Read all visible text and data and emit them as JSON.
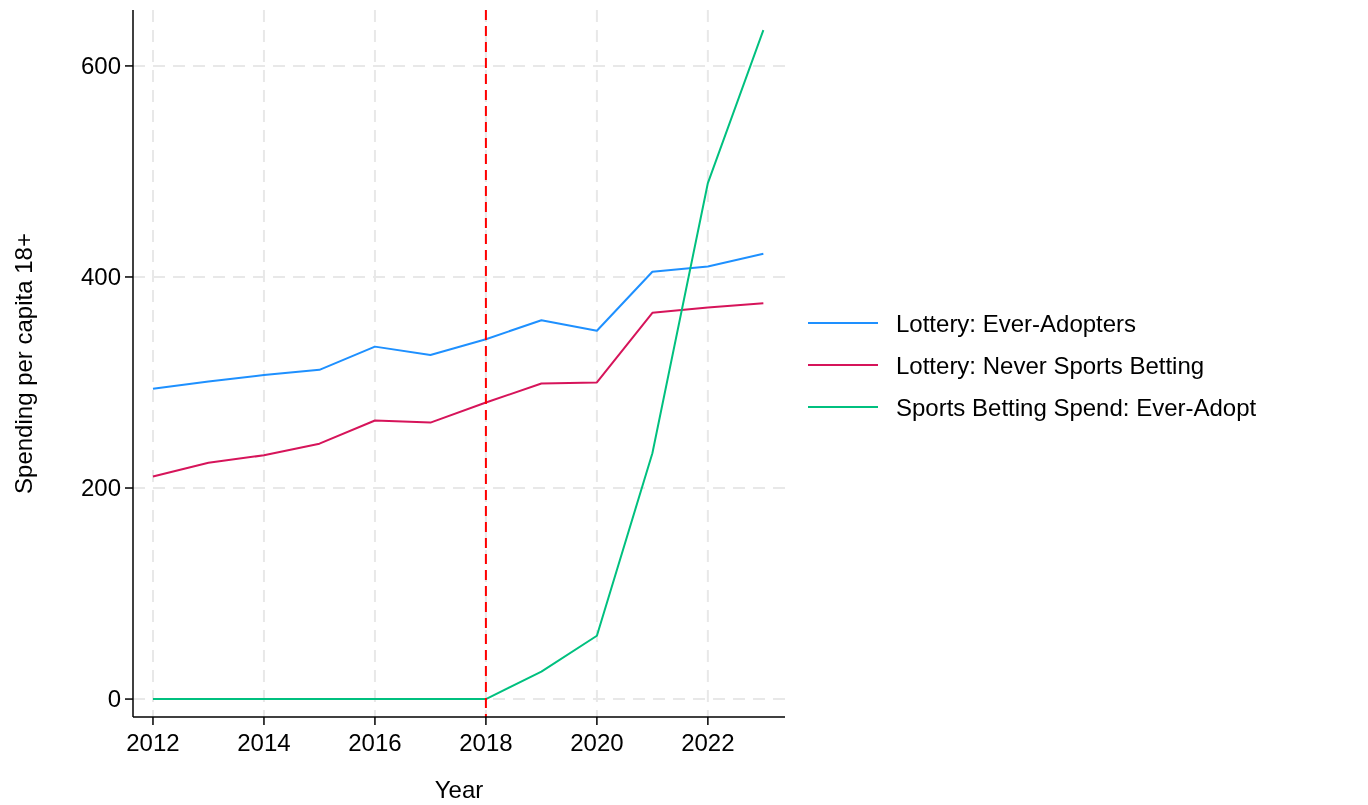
{
  "chart_data": {
    "type": "line",
    "xlabel": "Year",
    "ylabel": "Spending per capita 18+",
    "x": [
      2012,
      2013,
      2014,
      2015,
      2016,
      2017,
      2018,
      2019,
      2020,
      2021,
      2022,
      2023
    ],
    "series": [
      {
        "name": "Lottery: Ever-Adopters",
        "color": "#1e90ff",
        "values": [
          294,
          301,
          307,
          312,
          334,
          326,
          341,
          359,
          349,
          405,
          410,
          422
        ]
      },
      {
        "name": "Lottery: Never Sports Betting",
        "color": "#d6145a",
        "values": [
          211,
          224,
          231,
          242,
          264,
          262,
          281,
          299,
          300,
          366,
          371,
          375
        ]
      },
      {
        "name": "Sports Betting Spend: Ever-Adopt",
        "color": "#00c07f",
        "values": [
          0,
          0,
          0,
          0,
          0,
          0,
          0,
          26,
          60,
          233,
          489,
          634
        ]
      }
    ],
    "xlim": [
      2011.64,
      2023.39
    ],
    "xticks": [
      2012,
      2014,
      2016,
      2018,
      2020,
      2022
    ],
    "ylim": [
      -17,
      653
    ],
    "yticks": [
      0,
      200,
      400,
      600
    ],
    "grid": true,
    "legend": "right",
    "line_style": "solid",
    "ref_lines": [
      {
        "axis": "x",
        "value": 2018,
        "color": "#ff0000",
        "line_style": "dashed"
      }
    ]
  }
}
